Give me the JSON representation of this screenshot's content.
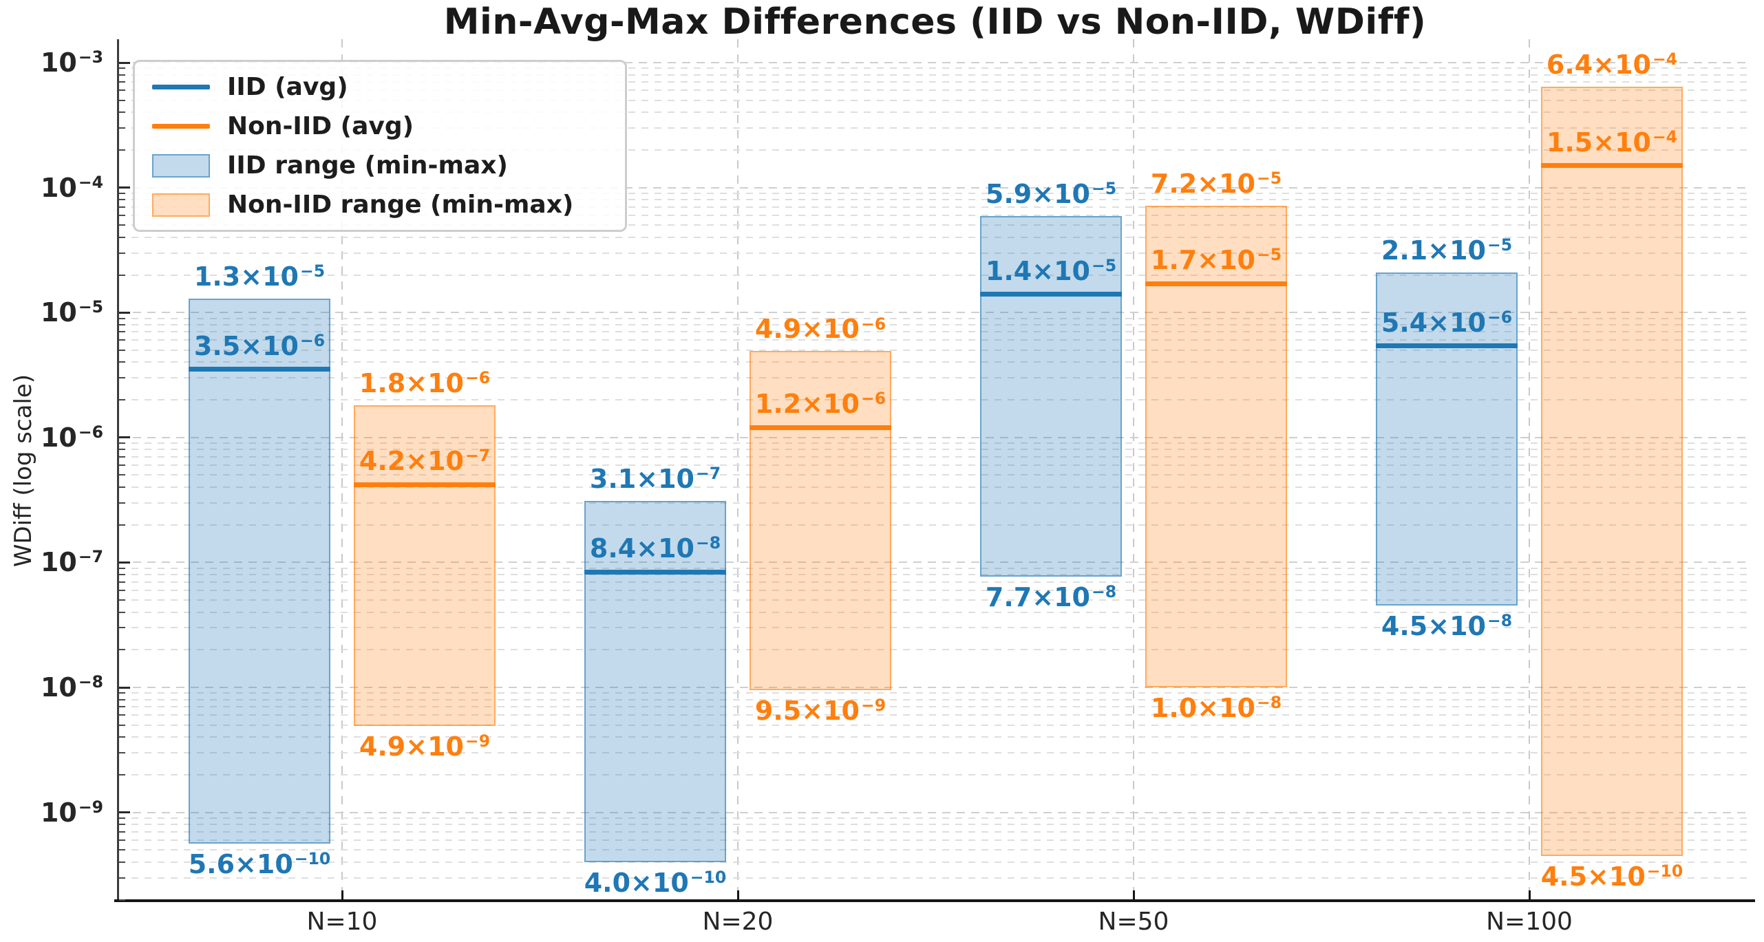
{
  "chart_data": {
    "type": "range-bar",
    "y_scale": "log",
    "title": "Min-Avg-Max Differences (IID vs Non-IID, WDiff)",
    "ylabel": "WDiff (log scale)",
    "xlabel": "",
    "categories": [
      "N=10",
      "N=20",
      "N=50",
      "N=100"
    ],
    "y_ticks": [
      "−3",
      "−4",
      "−5",
      "−6",
      "−7",
      "−8",
      "−9"
    ],
    "ylim_top": 0.00155,
    "ylim_bottom": 1.95e-10,
    "grid": true,
    "legend_position": "upper left",
    "colors": {
      "iid": "#1f77b4",
      "noniid": "#ff7f0e",
      "iid_fill": "rgba(31,119,180,0.27)",
      "noniid_fill": "rgba(255,127,14,0.26)",
      "iid_edge": "rgba(31,119,180,0.55)",
      "noniid_edge": "rgba(255,127,14,0.55)",
      "grid": "#d4d4d4",
      "axis": "#2b2b2b"
    },
    "series": [
      {
        "name": "IID",
        "color": "#1f77b4",
        "points": [
          {
            "category": "N=10",
            "min": 5.6e-10,
            "avg": 3.5e-06,
            "max": 1.3e-05,
            "labels": {
              "min": {
                "m": "5.6",
                "e": "−10"
              },
              "avg": {
                "m": "3.5",
                "e": "−6"
              },
              "max": {
                "m": "1.3",
                "e": "−5"
              }
            }
          },
          {
            "category": "N=20",
            "min": 4e-10,
            "avg": 8.4e-08,
            "max": 3.1e-07,
            "labels": {
              "min": {
                "m": "4.0",
                "e": "−10"
              },
              "avg": {
                "m": "8.4",
                "e": "−8"
              },
              "max": {
                "m": "3.1",
                "e": "−7"
              }
            }
          },
          {
            "category": "N=50",
            "min": 7.7e-08,
            "avg": 1.4e-05,
            "max": 5.9e-05,
            "labels": {
              "min": {
                "m": "7.7",
                "e": "−8"
              },
              "avg": {
                "m": "1.4",
                "e": "−5"
              },
              "max": {
                "m": "5.9",
                "e": "−5"
              }
            }
          },
          {
            "category": "N=100",
            "min": 4.5e-08,
            "avg": 5.4e-06,
            "max": 2.1e-05,
            "labels": {
              "min": {
                "m": "4.5",
                "e": "−8"
              },
              "avg": {
                "m": "5.4",
                "e": "−6"
              },
              "max": {
                "m": "2.1",
                "e": "−5"
              }
            }
          }
        ]
      },
      {
        "name": "Non-IID",
        "color": "#ff7f0e",
        "points": [
          {
            "category": "N=10",
            "min": 4.9e-09,
            "avg": 4.2e-07,
            "max": 1.8e-06,
            "labels": {
              "min": {
                "m": "4.9",
                "e": "−9"
              },
              "avg": {
                "m": "4.2",
                "e": "−7"
              },
              "max": {
                "m": "1.8",
                "e": "−6"
              }
            }
          },
          {
            "category": "N=20",
            "min": 9.5e-09,
            "avg": 1.2e-06,
            "max": 4.9e-06,
            "labels": {
              "min": {
                "m": "9.5",
                "e": "−9"
              },
              "avg": {
                "m": "1.2",
                "e": "−6"
              },
              "max": {
                "m": "4.9",
                "e": "−6"
              }
            }
          },
          {
            "category": "N=50",
            "min": 1e-08,
            "avg": 1.7e-05,
            "max": 7.2e-05,
            "labels": {
              "min": {
                "m": "1.0",
                "e": "−8"
              },
              "avg": {
                "m": "1.7",
                "e": "−5"
              },
              "max": {
                "m": "7.2",
                "e": "−5"
              }
            }
          },
          {
            "category": "N=100",
            "min": 4.5e-10,
            "avg": 0.00015,
            "max": 0.00064,
            "labels": {
              "min": {
                "m": "4.5",
                "e": "−10"
              },
              "avg": {
                "m": "1.5",
                "e": "−4"
              },
              "max": {
                "m": "6.4",
                "e": "−4"
              }
            }
          }
        ]
      }
    ]
  },
  "legend": [
    {
      "label": "IID (avg)",
      "swatch": "line",
      "color": "#1f77b4"
    },
    {
      "label": "Non-IID (avg)",
      "swatch": "line",
      "color": "#ff7f0e"
    },
    {
      "label": "IID range (min-max)",
      "swatch": "fill",
      "fill": "rgba(31,119,180,0.27)",
      "edge": "rgba(31,119,180,0.55)"
    },
    {
      "label": "Non-IID range (min-max)",
      "swatch": "fill",
      "fill": "rgba(255,127,14,0.26)",
      "edge": "rgba(255,127,14,0.55)"
    }
  ]
}
